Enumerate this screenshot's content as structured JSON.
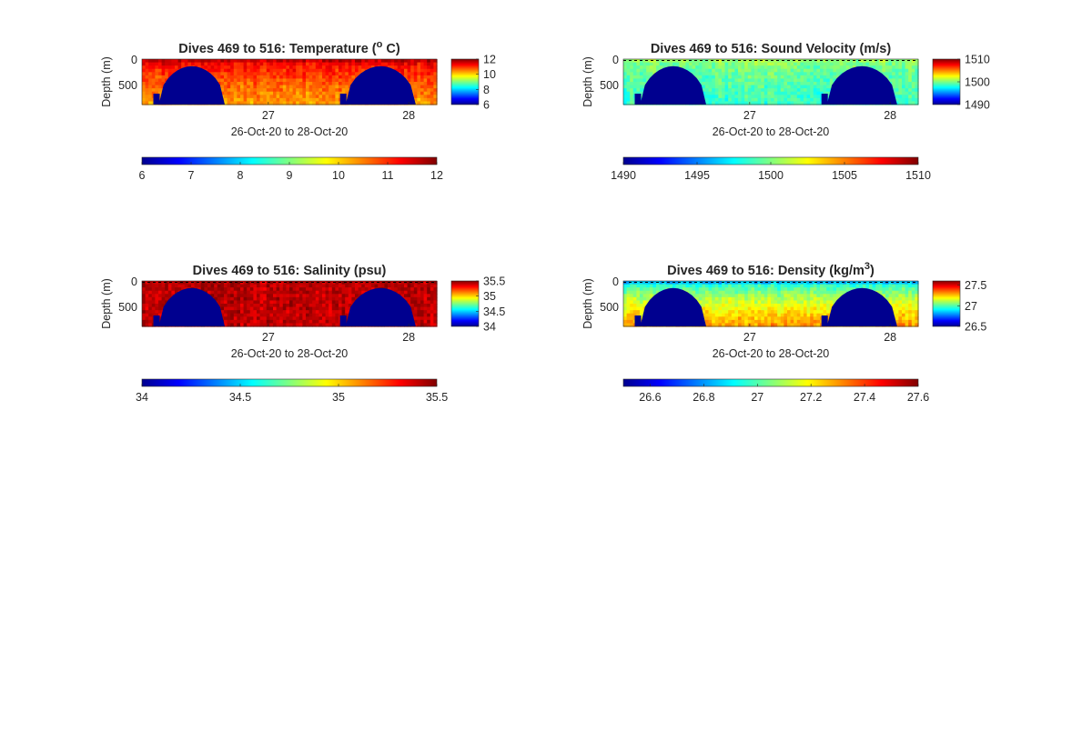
{
  "figure": {
    "background": "#ffffff",
    "colormap": "jet",
    "mask_color": "#00008f",
    "surface_line_color": "#000000"
  },
  "chart_data": [
    {
      "type": "heatmap",
      "title": "Dives 469 to 516: Temperature (",
      "title_super": "o",
      "title_tail": " C)",
      "ylabel": "Depth (m)",
      "xlabel": "26-Oct-20 to 28-Oct-20",
      "x_range": [
        26.1,
        28.2
      ],
      "x_ticks": [
        27,
        28
      ],
      "y_range": [
        0,
        900
      ],
      "y_reversed": true,
      "y_ticks": [
        0,
        500
      ],
      "clim": [
        6,
        12
      ],
      "side_colorbar_ticks": [
        12,
        10,
        8,
        6
      ],
      "bottom_colorbar_ticks": [
        "6",
        "7",
        "8",
        "9",
        "10",
        "11",
        "12"
      ],
      "surface_value": 11.6,
      "deep_value": 10.3,
      "surface_dashed_line": false,
      "no_data_regions": [
        {
          "x_start": 26.22,
          "x_end": 26.69,
          "top_depth": 140
        },
        {
          "x_start": 27.55,
          "x_end": 28.05,
          "top_depth": 140
        }
      ]
    },
    {
      "type": "heatmap",
      "title": "Dives 469 to 516: Sound Velocity (m/s)",
      "ylabel": "Depth (m)",
      "xlabel": "26-Oct-20 to 28-Oct-20",
      "x_range": [
        26.1,
        28.2
      ],
      "x_ticks": [
        27,
        28
      ],
      "y_range": [
        0,
        900
      ],
      "y_reversed": true,
      "y_ticks": [
        0,
        500
      ],
      "clim": [
        1490,
        1510
      ],
      "side_colorbar_ticks": [
        1510,
        1500,
        1490
      ],
      "bottom_colorbar_ticks": [
        "1490",
        "1495",
        "1500",
        "1505",
        "1510"
      ],
      "surface_value": 1500.5,
      "deep_value": 1498.5,
      "surface_dashed_line": true,
      "no_data_regions": [
        {
          "x_start": 26.22,
          "x_end": 26.69,
          "top_depth": 140
        },
        {
          "x_start": 27.55,
          "x_end": 28.05,
          "top_depth": 140
        }
      ]
    },
    {
      "type": "heatmap",
      "title": "Dives 469 to 516: Salinity (psu)",
      "ylabel": "Depth (m)",
      "xlabel": "26-Oct-20 to 28-Oct-20",
      "x_range": [
        26.1,
        28.2
      ],
      "x_ticks": [
        27,
        28
      ],
      "y_range": [
        0,
        900
      ],
      "y_reversed": true,
      "y_ticks": [
        0,
        500
      ],
      "clim": [
        34,
        35.5
      ],
      "side_colorbar_ticks": [
        35.5,
        35,
        34.5,
        34
      ],
      "bottom_colorbar_ticks": [
        "34",
        "34.5",
        "35",
        "35.5"
      ],
      "surface_value": 35.42,
      "deep_value": 35.4,
      "surface_dashed_line": true,
      "no_data_regions": [
        {
          "x_start": 26.22,
          "x_end": 26.69,
          "top_depth": 140
        },
        {
          "x_start": 27.55,
          "x_end": 28.05,
          "top_depth": 140
        }
      ]
    },
    {
      "type": "heatmap",
      "title": "Dives 469 to 516: Density (kg/m",
      "title_super": "3",
      "title_tail": ")",
      "ylabel": "Depth (m)",
      "xlabel": "26-Oct-20 to 28-Oct-20",
      "x_range": [
        26.1,
        28.2
      ],
      "x_ticks": [
        27,
        28
      ],
      "y_range": [
        0,
        900
      ],
      "y_reversed": true,
      "y_ticks": [
        0,
        500
      ],
      "clim": [
        26.5,
        27.6
      ],
      "side_colorbar_ticks": [
        27.5,
        27,
        26.5
      ],
      "bottom_colorbar_ticks": [
        "26.6",
        "26.8",
        "27",
        "27.2",
        "27.4",
        "27.6"
      ],
      "surface_value": 26.85,
      "deep_value": 27.3,
      "surface_dashed_line": true,
      "no_data_regions": [
        {
          "x_start": 26.22,
          "x_end": 26.69,
          "top_depth": 140
        },
        {
          "x_start": 27.55,
          "x_end": 28.05,
          "top_depth": 140
        }
      ]
    }
  ]
}
